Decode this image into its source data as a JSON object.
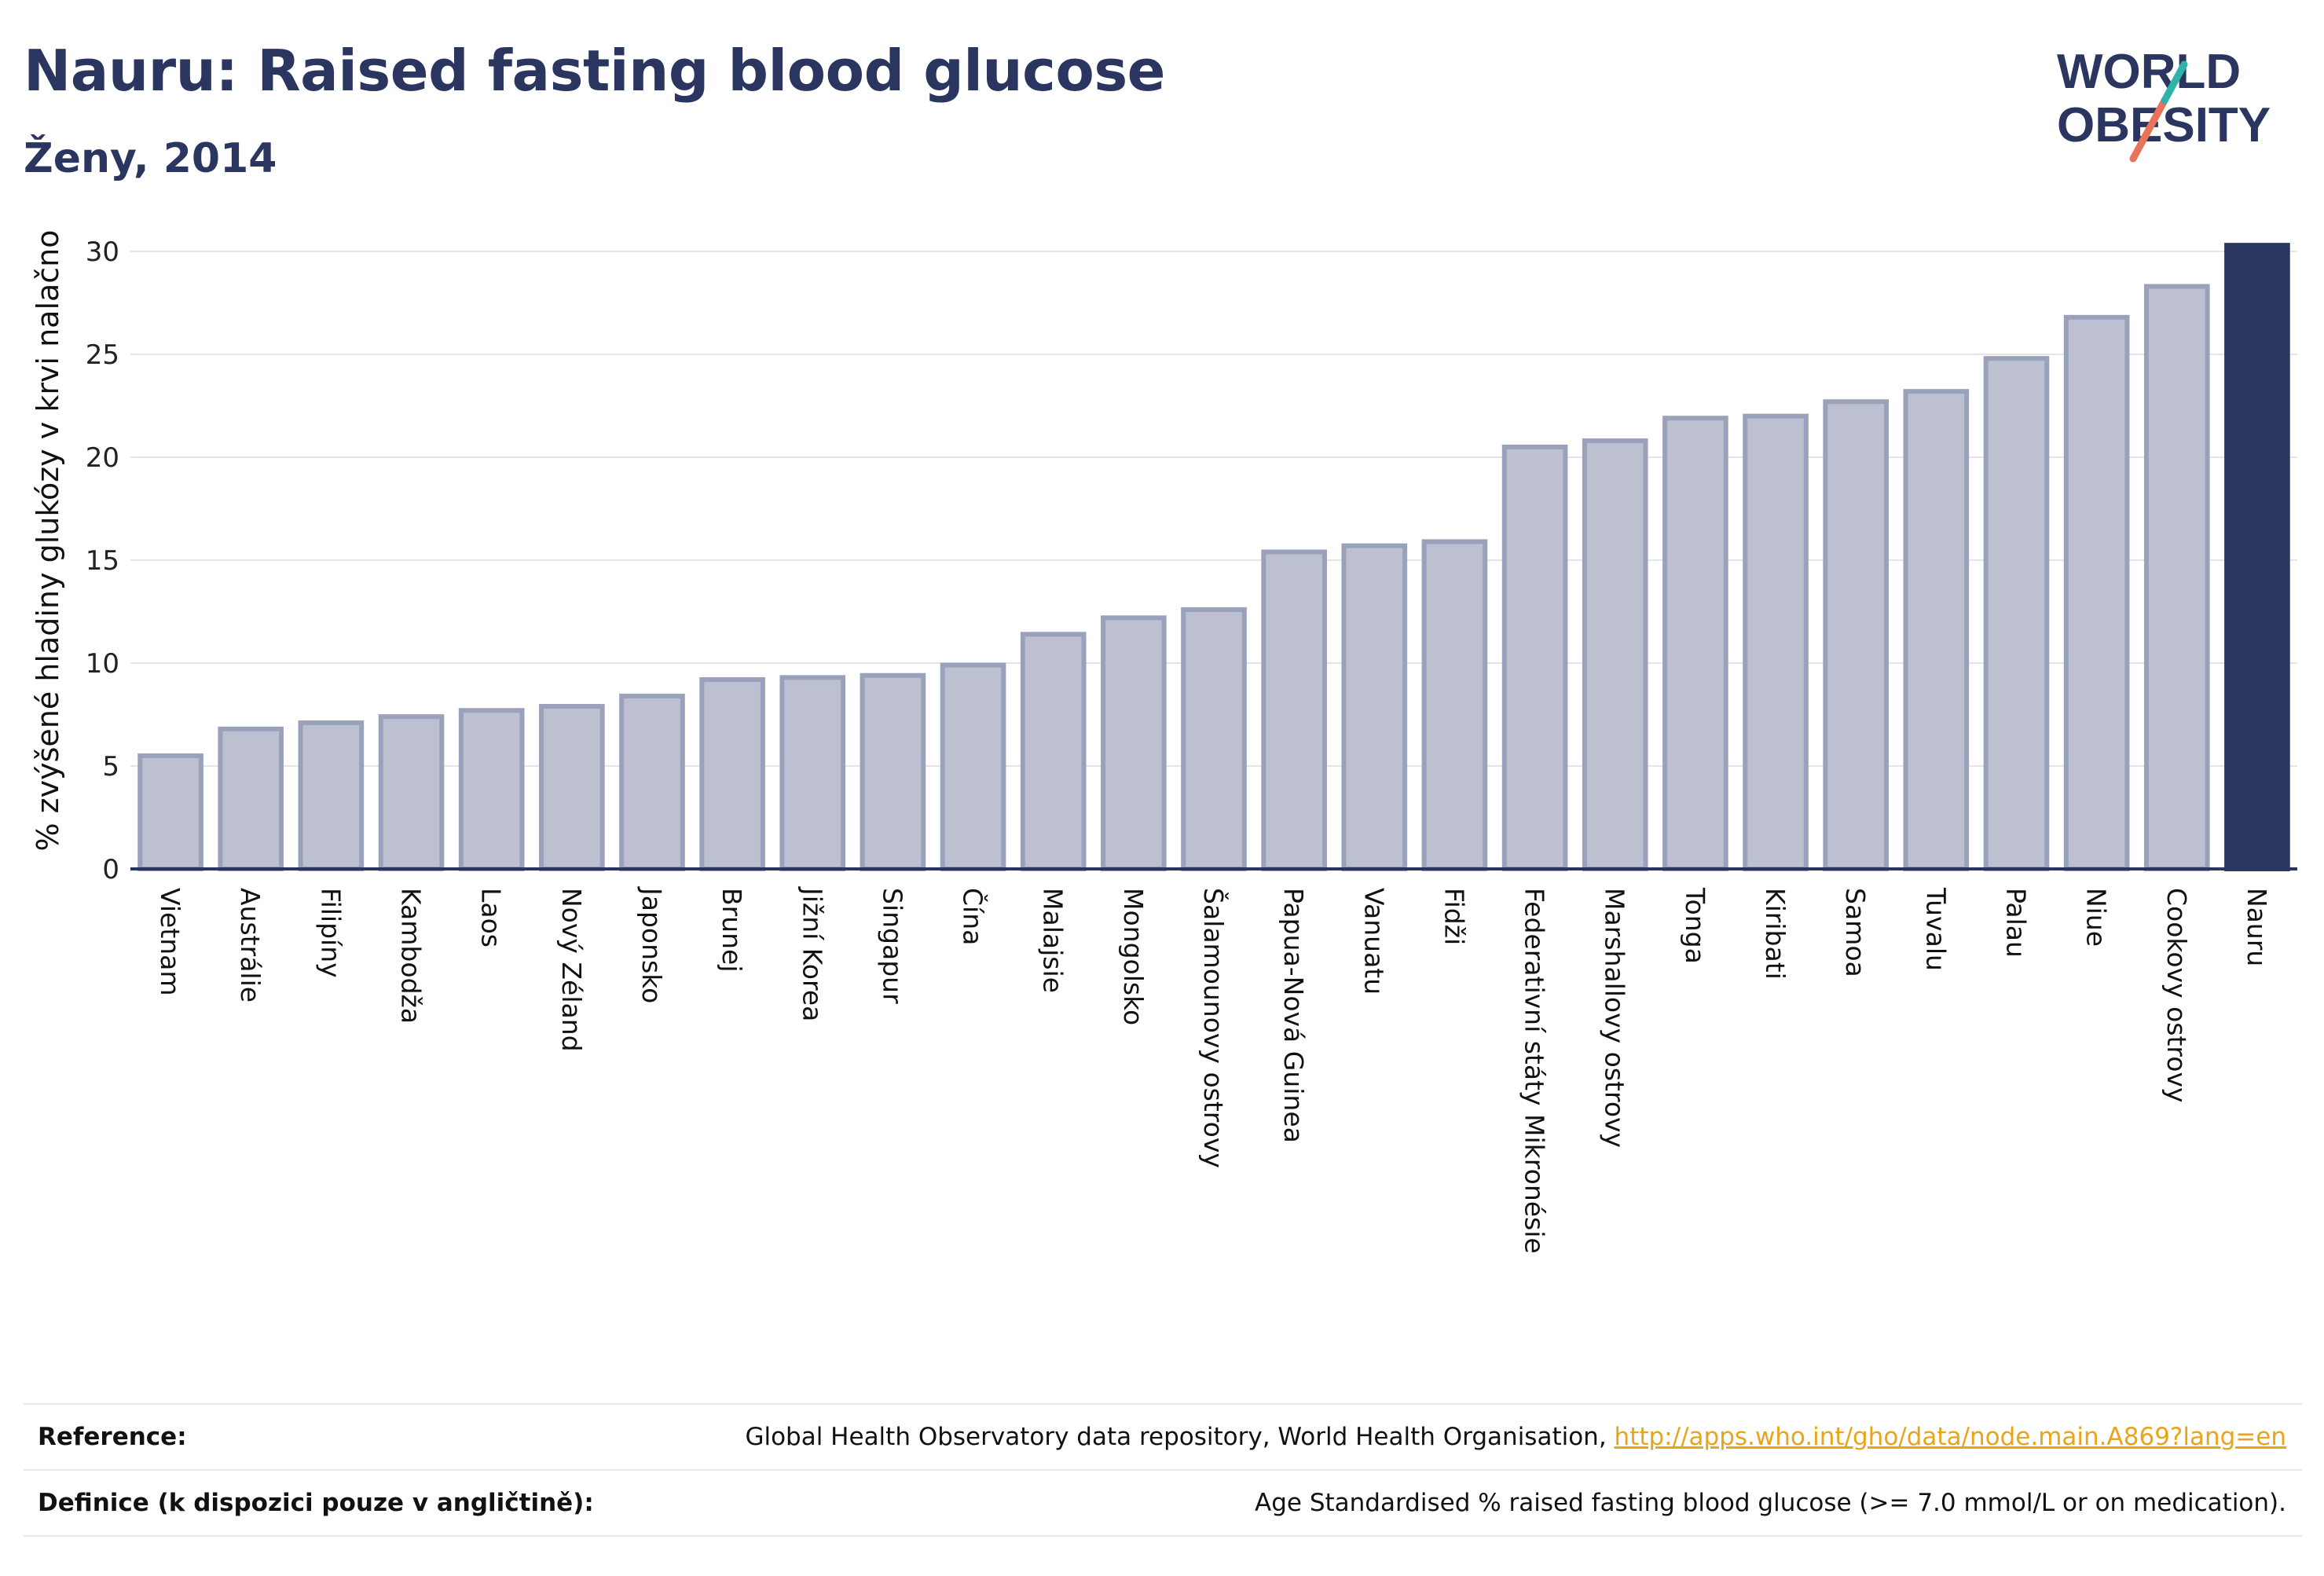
{
  "header": {
    "title": "Nauru: Raised fasting blood glucose",
    "subtitle": "Ženy, 2014"
  },
  "logo": {
    "line1": "WORLD",
    "line2": "OBESITY"
  },
  "colors": {
    "bar": "#bcc0d0",
    "bar_stroke": "#9aa1bb",
    "highlight": "#2b3660",
    "grid": "#e3e5ec",
    "axis": "#2b3660"
  },
  "chart_data": {
    "type": "bar",
    "ylabel": "% zvýšené hladiny glukózy v krvi nalačno",
    "ylim": [
      0,
      30
    ],
    "yticks": [
      0,
      5,
      10,
      15,
      20,
      25,
      30
    ],
    "grid": true,
    "highlight": "Nauru",
    "categories": [
      "Vietnam",
      "Austrálie",
      "Filipíny",
      "Kambodža",
      "Laos",
      "Nový Zéland",
      "Japonsko",
      "Brunej",
      "Jižní Korea",
      "Singapur",
      "Čína",
      "Malajsie",
      "Mongolsko",
      "Šalamounovy ostrovy",
      "Papua-Nová Guinea",
      "Vanuatu",
      "Fidži",
      "Federativní státy Mikronésie",
      "Marshallovy ostrovy",
      "Tonga",
      "Kiribati",
      "Samoa",
      "Tuvalu",
      "Palau",
      "Niue",
      "Cookovy ostrovy",
      "Nauru"
    ],
    "values": [
      5.5,
      6.8,
      7.1,
      7.4,
      7.7,
      7.9,
      8.4,
      9.2,
      9.3,
      9.4,
      9.9,
      11.4,
      12.2,
      12.6,
      15.4,
      15.7,
      15.9,
      20.5,
      20.8,
      21.9,
      22.0,
      22.7,
      23.2,
      24.8,
      26.8,
      28.3,
      30.3
    ]
  },
  "footer": {
    "reference_label": "Reference:",
    "reference_text": "Global Health Observatory data repository, World Health Organisation, ",
    "reference_link": "http://apps.who.int/gho/data/node.main.A869?lang=en",
    "definition_label": "Definice (k dispozici pouze v angličtině):",
    "definition_text": "Age Standardised % raised fasting blood glucose (>= 7.0 mmol/L or on medication)."
  }
}
